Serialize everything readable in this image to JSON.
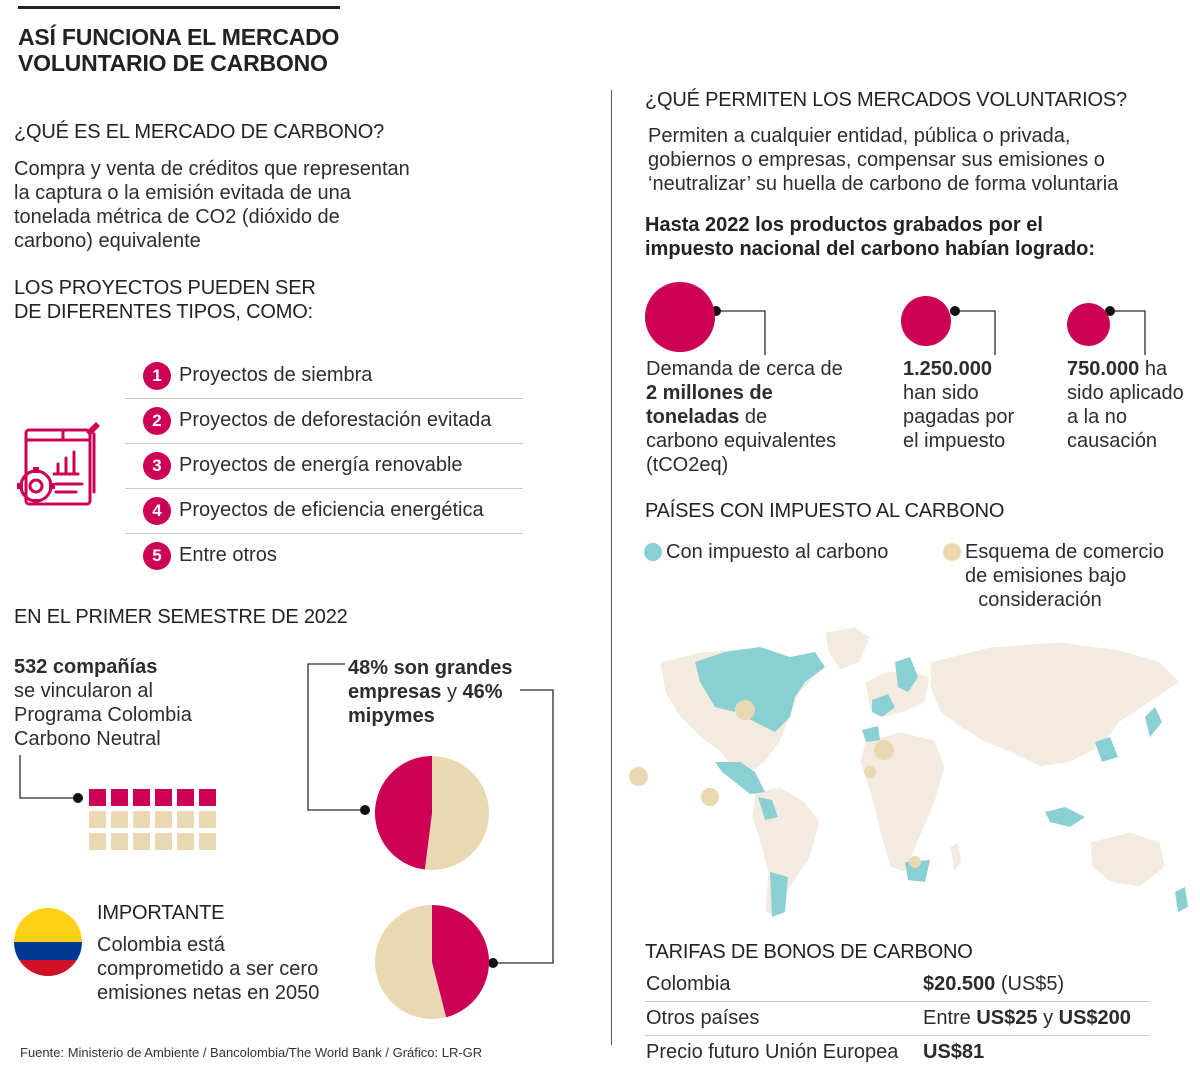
{
  "title": {
    "line1": "ASÍ FUNCIONA EL MERCADO",
    "line2": "VOLUNTARIO DE CARBONO"
  },
  "que_es": {
    "heading": "¿QUÉ ES EL MERCADO DE CARBONO?",
    "lines": [
      "Compra y venta de créditos que representan",
      "la captura o la emisión evitada de una",
      "tonelada métrica de CO2 (dióxido de",
      "carbono) equivalente"
    ]
  },
  "proyectos": {
    "heading_line1": "LOS PROYECTOS PUEDEN SER",
    "heading_line2": "DE DIFERENTES TIPOS, COMO:",
    "items": [
      {
        "num": "1",
        "label": "Proyectos de siembra"
      },
      {
        "num": "2",
        "label": "Proyectos de deforestación evitada"
      },
      {
        "num": "3",
        "label": "Proyectos de energía renovable"
      },
      {
        "num": "4",
        "label": "Proyectos de eficiencia energética"
      },
      {
        "num": "5",
        "label": "Entre otros"
      }
    ],
    "icon": "business-report-gear-icon"
  },
  "semestre": {
    "heading": "EN EL PRIMER SEMESTRE DE 2022",
    "companies_bold": "532 compañías",
    "companies_lines": [
      "se vincularon al",
      "Programa Colombia",
      "Carbono Neutral"
    ],
    "pie_bold1": "48% son grandes",
    "pie_bold2": "empresas",
    "pie_y": " y ",
    "pie_bold3": "46%",
    "pie_bold4": "mipymes",
    "pie1_percent": 48,
    "pie2_percent": 46
  },
  "importante": {
    "heading": "IMPORTANTE",
    "lines": [
      "Colombia está",
      "comprometido a ser cero",
      "emisiones netas en 2050"
    ]
  },
  "source": "Fuente: Ministerio de Ambiente / Bancolombia/The World Bank / Gráfico: LR-GR",
  "permiten": {
    "heading": "¿QUÉ PERMITEN LOS MERCADOS VOLUNTARIOS?",
    "lines": [
      "Permiten a cualquier entidad, pública o privada,",
      "gobiernos o empresas, compensar sus emisiones o",
      "‘neutralizar’ su huella de carbono de forma voluntaria"
    ]
  },
  "hasta": {
    "heading_line1": "Hasta 2022 los productos grabados por el",
    "heading_line2": "impuesto nacional del carbono habían logrado:",
    "c1": {
      "l1": "Demanda de cerca de",
      "bold1": "2 millones de",
      "bold2": "toneladas",
      "rest2": " de",
      "l4": "carbono equivalentes",
      "l5": "(tCO2eq)"
    },
    "c2": {
      "bold": "1.250.000",
      "l2": "han sido",
      "l3": "pagadas por",
      "l4": "el impuesto"
    },
    "c3": {
      "bold": "750.000",
      "rest1": " ha",
      "l2": "sido aplicado",
      "l3": "a la no",
      "l4": "causación"
    }
  },
  "paises": {
    "heading": "PAÍSES CON IMPUESTO AL CARBONO",
    "legend1": "Con impuesto al carbono",
    "legend2_lines": [
      "Esquema de comercio",
      "de emisiones bajo",
      "consideración"
    ],
    "map_icon": "world-map-icon",
    "colors": {
      "tax": "#8ad0d2",
      "scheme": "#ead8b3",
      "land": "#f3ebdf"
    }
  },
  "tarifas": {
    "heading": "TARIFAS DE BONOS DE CARBONO",
    "rows": [
      {
        "label": "Colombia",
        "v_bold": "$20.500",
        "v_rest": " (US$5)"
      },
      {
        "label": "Otros países",
        "v_pre": "Entre ",
        "v_b1": "US$25",
        "v_mid": " y ",
        "v_b2": "US$200"
      },
      {
        "label": "Precio futuro Unión Europea",
        "v_bold": "US$81"
      }
    ]
  }
}
